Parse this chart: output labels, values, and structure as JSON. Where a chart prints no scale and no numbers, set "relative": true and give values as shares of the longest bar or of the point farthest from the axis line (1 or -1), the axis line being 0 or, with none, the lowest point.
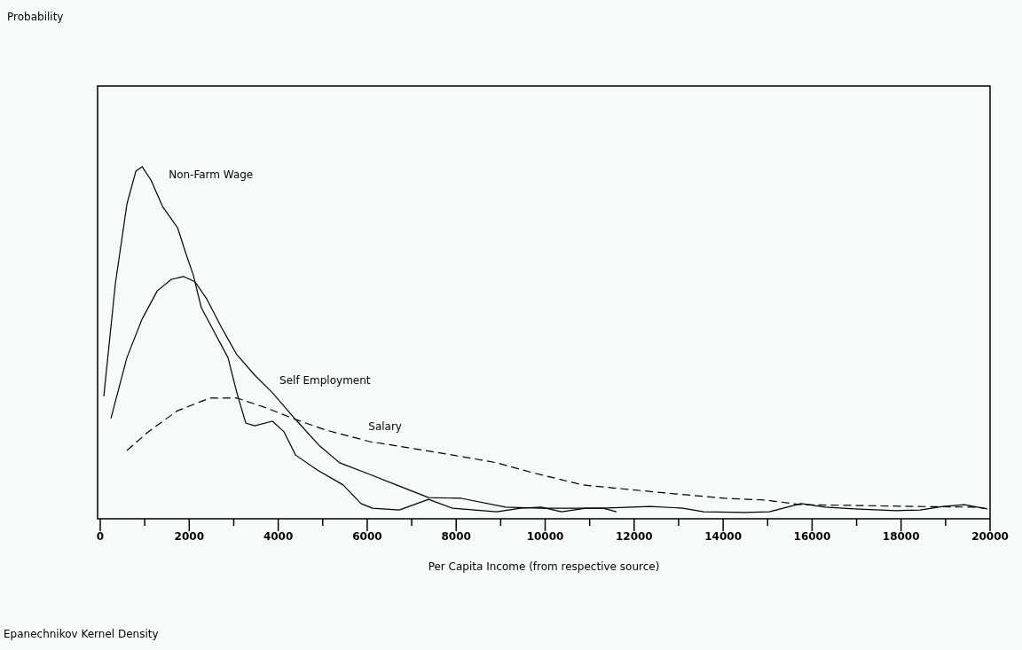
{
  "chart_data": {
    "type": "line",
    "relative": true,
    "xlabel": "Per Capita Income (from respective source)",
    "annotations": [
      "Probability",
      "Epanechnikov Kernel Density"
    ],
    "xlim": [
      -60,
      20000
    ],
    "xticks": [
      0,
      {
        "value": 1000,
        "label": null
      },
      2000,
      {
        "value": 3000,
        "label": null
      },
      4000,
      {
        "value": 5000,
        "label": null
      },
      6000,
      {
        "value": 7000,
        "label": null
      },
      8000,
      {
        "value": 9000,
        "label": null
      },
      10000,
      {
        "value": 11000,
        "label": null
      },
      12000,
      {
        "value": 13000,
        "label": null
      },
      14000,
      {
        "value": 15000,
        "label": null
      },
      16000,
      {
        "value": 17000,
        "label": null
      },
      18000,
      {
        "value": 19000,
        "label": null
      },
      20000
    ],
    "grid": false,
    "legend": false,
    "marker": "none",
    "series": [
      {
        "name": "Non-Farm Wage",
        "color": "#000000",
        "line_style": "solid",
        "x": [
          80,
          340,
          600,
          800,
          940,
          1140,
          1400,
          1740,
          1930,
          2090,
          2270,
          2590,
          2870,
          3070,
          3270,
          3470,
          3870,
          4130,
          4390,
          4870,
          5460,
          5860,
          6120,
          6720,
          7380,
          7920,
          8910,
          9450,
          9910,
          10370,
          10910,
          11310,
          11600
        ],
        "values": [
          0.348,
          0.668,
          0.894,
          0.987,
          1,
          0.962,
          0.887,
          0.826,
          0.751,
          0.693,
          0.6,
          0.524,
          0.458,
          0.358,
          0.272,
          0.264,
          0.277,
          0.247,
          0.181,
          0.139,
          0.096,
          0.043,
          0.03,
          0.025,
          0.055,
          0.03,
          0.02,
          0.03,
          0.033,
          0.02,
          0.03,
          0.03,
          0.02
        ]
      },
      {
        "name": "Self Employment",
        "color": "#000000",
        "line_style": "solid",
        "x": [
          240,
          600,
          940,
          1280,
          1600,
          1870,
          2130,
          2390,
          2730,
          3070,
          3470,
          3870,
          4390,
          4930,
          5380,
          6060,
          6720,
          7380,
          8120,
          9110,
          9910,
          11250,
          12360,
          13100,
          13560,
          14500,
          15040,
          15750,
          16290,
          16950,
          17890,
          18430,
          18940,
          19420,
          19940
        ],
        "values": [
          0.285,
          0.458,
          0.567,
          0.647,
          0.68,
          0.688,
          0.673,
          0.625,
          0.542,
          0.466,
          0.408,
          0.358,
          0.282,
          0.207,
          0.159,
          0.126,
          0.093,
          0.06,
          0.058,
          0.033,
          0.03,
          0.03,
          0.035,
          0.03,
          0.02,
          0.018,
          0.02,
          0.043,
          0.033,
          0.028,
          0.023,
          0.025,
          0.035,
          0.04,
          0.028
        ]
      },
      {
        "name": "Salary",
        "color": "#000000",
        "line_style": "dashed",
        "x": [
          600,
          1080,
          1740,
          2470,
          3070,
          3730,
          4390,
          5070,
          6060,
          6920,
          7920,
          8910,
          9710,
          10850,
          11900,
          12900,
          14040,
          14960,
          15750,
          16830,
          18290,
          19620,
          19880
        ],
        "values": [
          0.194,
          0.247,
          0.307,
          0.343,
          0.343,
          0.315,
          0.282,
          0.252,
          0.219,
          0.202,
          0.181,
          0.159,
          0.131,
          0.096,
          0.083,
          0.071,
          0.058,
          0.053,
          0.04,
          0.038,
          0.035,
          0.033,
          0.03
        ]
      }
    ]
  }
}
